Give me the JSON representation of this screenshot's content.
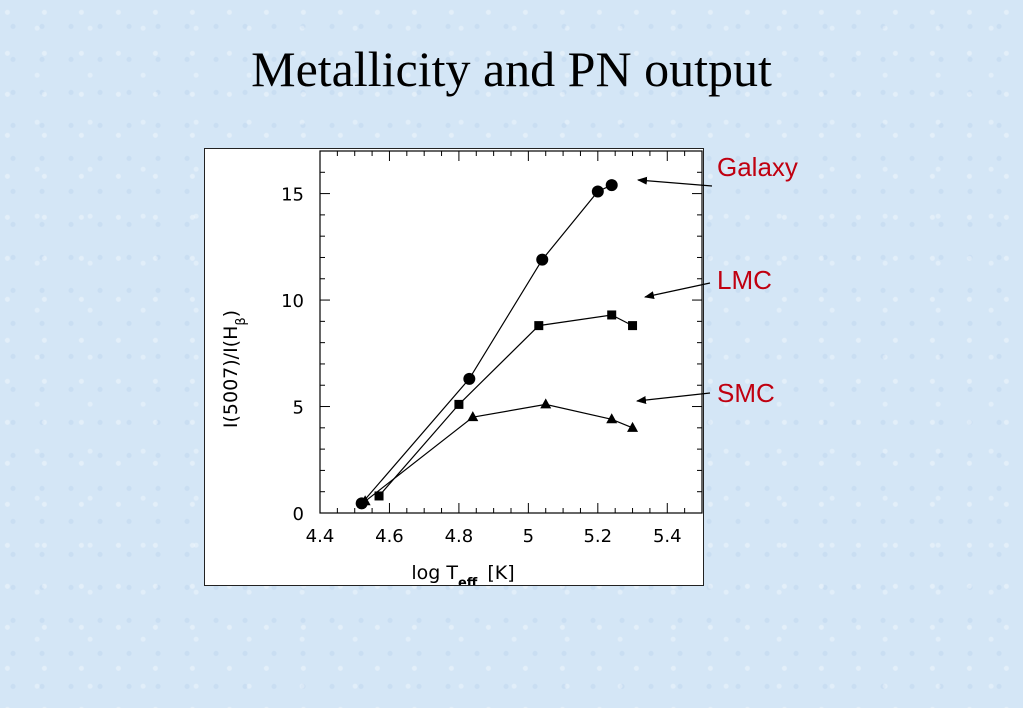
{
  "slide": {
    "title": "Metallicity and PN output"
  },
  "callouts": {
    "galaxy": "Galaxy",
    "lmc": "LMC",
    "smc": "SMC"
  },
  "colors": {
    "callout_text": "#c00010",
    "marker": "#000000"
  },
  "chart_data": {
    "type": "line",
    "xlabel": "log T_eff [K]",
    "ylabel": "I(5007)/I(H_β)",
    "xlim": [
      4.4,
      5.5
    ],
    "ylim": [
      0,
      17
    ],
    "xticks": [
      4.4,
      4.6,
      4.8,
      5.0,
      5.2,
      5.4
    ],
    "xtick_labels": [
      "4.4",
      "4.6",
      "4.8",
      "5",
      "5.2",
      "5.4"
    ],
    "yticks": [
      0,
      5,
      10,
      15
    ],
    "ytick_labels": [
      "0",
      "5",
      "10",
      "15"
    ],
    "grid": false,
    "series": [
      {
        "name": "Galaxy",
        "marker": "circle",
        "x": [
          4.52,
          4.83,
          5.04,
          5.2,
          5.24
        ],
        "y": [
          0.45,
          6.3,
          11.9,
          15.1,
          15.4
        ]
      },
      {
        "name": "LMC",
        "marker": "square",
        "x": [
          4.57,
          4.8,
          5.03,
          5.24,
          5.3
        ],
        "y": [
          0.8,
          5.1,
          8.8,
          9.3,
          8.8
        ]
      },
      {
        "name": "SMC",
        "marker": "triangle",
        "x": [
          4.53,
          4.84,
          5.05,
          5.24,
          5.3
        ],
        "y": [
          0.55,
          4.5,
          5.1,
          4.4,
          4.0
        ]
      }
    ]
  }
}
